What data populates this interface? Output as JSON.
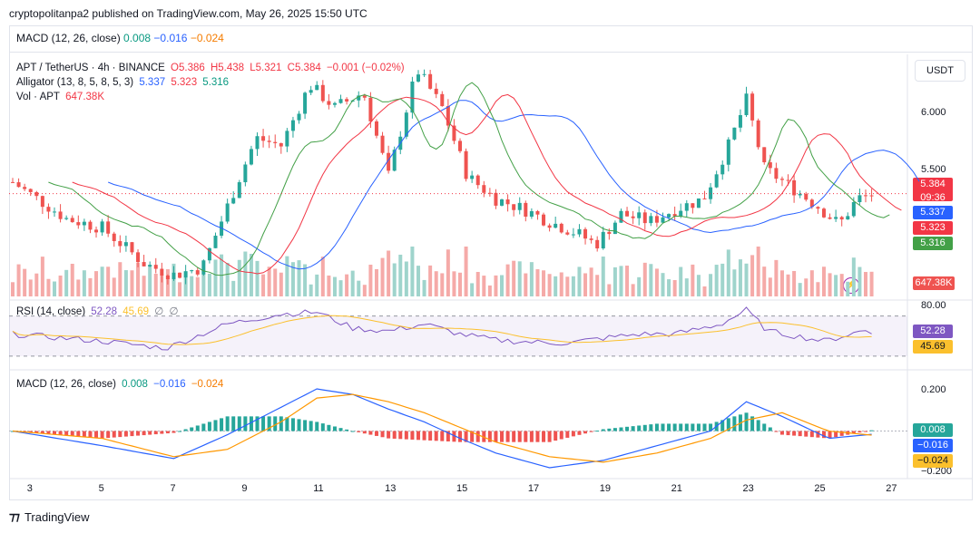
{
  "header": {
    "publisher": "cryptopolitanpa2 published on TradingView.com, May 26, 2025 15:50 UTC"
  },
  "top_macd": {
    "label": "MACD (12, 26, close)",
    "v1": "0.008",
    "v2": "−0.016",
    "v3": "−0.024"
  },
  "price_legend": {
    "symbol": "APT / TetherUS · 4h · BINANCE",
    "o": "O5.386",
    "h": "H5.438",
    "l": "L5.321",
    "c": "C5.384",
    "chg": "−0.001 (−0.02%)",
    "alligator_label": "Alligator (13, 8, 5, 8, 5, 3)",
    "alligator_v1": "5.337",
    "alligator_v2": "5.323",
    "alligator_v3": "5.316",
    "vol_label": "Vol · APT",
    "vol_value": "647.38K"
  },
  "currency_button": "USDT",
  "price_axis": {
    "ticks": [
      "6.000",
      "5.500"
    ],
    "tags": {
      "price": "5.384",
      "countdown": "09:36",
      "jaw": "5.337",
      "teeth": "5.323",
      "lips": "5.316",
      "volume": "647.38K"
    }
  },
  "rsi": {
    "label": "RSI (14, close)",
    "v1": "52.28",
    "v2": "45.69",
    "v3": "∅",
    "v4": "∅",
    "ticks": [
      "80.00"
    ],
    "tags": {
      "rsi": "52.28",
      "ma": "45.69"
    }
  },
  "macd": {
    "label": "MACD (12, 26, close)",
    "v1": "0.008",
    "v2": "−0.016",
    "v3": "−0.024",
    "ticks": [
      "0.200",
      "−0.200"
    ],
    "tags": {
      "hist": "0.008",
      "macd": "−0.016",
      "signal": "−0.024"
    }
  },
  "time_axis": [
    "3",
    "5",
    "7",
    "9",
    "11",
    "13",
    "15",
    "17",
    "19",
    "21",
    "23",
    "25",
    "27"
  ],
  "footer": {
    "brand": "TradingView"
  },
  "colors": {
    "up": "#26a69a",
    "down": "#ef5350",
    "jaw": "#2962ff",
    "teeth": "#f23645",
    "lips": "#43a047",
    "rsi": "#7e57c2",
    "rsi_ma": "#fbc02d",
    "macd": "#2962ff",
    "signal": "#ff9800"
  },
  "chart_data": {
    "type": "candlestick",
    "x_unit": "day of May 2025 (4h candles)",
    "price_ylim": [
      4.75,
      6.3
    ],
    "ohlc_keypoints": [
      {
        "x": 2.5,
        "close": 5.46
      },
      {
        "x": 4,
        "close": 5.22
      },
      {
        "x": 5,
        "close": 5.16
      },
      {
        "x": 6.2,
        "close": 4.92
      },
      {
        "x": 7,
        "close": 4.85
      },
      {
        "x": 7.8,
        "close": 4.9
      },
      {
        "x": 8.5,
        "close": 5.3
      },
      {
        "x": 9.3,
        "close": 5.75
      },
      {
        "x": 10,
        "close": 5.7
      },
      {
        "x": 10.8,
        "close": 6.1
      },
      {
        "x": 11.5,
        "close": 5.95
      },
      {
        "x": 12.3,
        "close": 6.05
      },
      {
        "x": 13,
        "close": 5.5
      },
      {
        "x": 13.8,
        "close": 6.2
      },
      {
        "x": 14.5,
        "close": 5.95
      },
      {
        "x": 15.2,
        "close": 5.5
      },
      {
        "x": 16,
        "close": 5.35
      },
      {
        "x": 16.8,
        "close": 5.28
      },
      {
        "x": 17.5,
        "close": 5.2
      },
      {
        "x": 18.3,
        "close": 5.12
      },
      {
        "x": 18.8,
        "close": 5.05
      },
      {
        "x": 19.5,
        "close": 5.25
      },
      {
        "x": 20.3,
        "close": 5.2
      },
      {
        "x": 21,
        "close": 5.28
      },
      {
        "x": 21.8,
        "close": 5.35
      },
      {
        "x": 22.5,
        "close": 5.7
      },
      {
        "x": 23,
        "close": 6.0
      },
      {
        "x": 23.5,
        "close": 5.55
      },
      {
        "x": 24.3,
        "close": 5.42
      },
      {
        "x": 25,
        "close": 5.3
      },
      {
        "x": 25.6,
        "close": 5.18
      },
      {
        "x": 26.1,
        "close": 5.35
      },
      {
        "x": 26.6,
        "close": 5.384
      }
    ],
    "rsi_ylim": [
      20,
      85
    ],
    "rsi_keypoints": [
      {
        "x": 2.5,
        "rsi": 52
      },
      {
        "x": 5,
        "rsi": 45
      },
      {
        "x": 6.8,
        "rsi": 38
      },
      {
        "x": 8.5,
        "rsi": 62
      },
      {
        "x": 10,
        "rsi": 72
      },
      {
        "x": 11,
        "rsi": 74
      },
      {
        "x": 12,
        "rsi": 58
      },
      {
        "x": 13,
        "rsi": 55
      },
      {
        "x": 14,
        "rsi": 62
      },
      {
        "x": 15,
        "rsi": 52
      },
      {
        "x": 16,
        "rsi": 46
      },
      {
        "x": 17,
        "rsi": 44
      },
      {
        "x": 18,
        "rsi": 43
      },
      {
        "x": 19,
        "rsi": 48
      },
      {
        "x": 20,
        "rsi": 52
      },
      {
        "x": 21,
        "rsi": 52
      },
      {
        "x": 22.3,
        "rsi": 62
      },
      {
        "x": 23,
        "rsi": 76
      },
      {
        "x": 23.6,
        "rsi": 55
      },
      {
        "x": 25.2,
        "rsi": 45
      },
      {
        "x": 26.3,
        "rsi": 56
      },
      {
        "x": 26.6,
        "rsi": 52.28
      }
    ],
    "macd_ylim": [
      -0.22,
      0.25
    ],
    "macd_keypoints": [
      {
        "x": 2.5,
        "macd": 0.0,
        "signal": 0.0
      },
      {
        "x": 5,
        "macd": -0.08,
        "signal": -0.04
      },
      {
        "x": 7,
        "macd": -0.15,
        "signal": -0.14
      },
      {
        "x": 8.5,
        "macd": -0.02,
        "signal": -0.1
      },
      {
        "x": 10,
        "macd": 0.13,
        "signal": 0.05
      },
      {
        "x": 11,
        "macd": 0.23,
        "signal": 0.18
      },
      {
        "x": 12,
        "macd": 0.2,
        "signal": 0.2
      },
      {
        "x": 13,
        "macd": 0.12,
        "signal": 0.16
      },
      {
        "x": 14,
        "macd": 0.05,
        "signal": 0.1
      },
      {
        "x": 15,
        "macd": -0.04,
        "signal": 0.02
      },
      {
        "x": 16,
        "macd": -0.12,
        "signal": -0.06
      },
      {
        "x": 17.5,
        "macd": -0.2,
        "signal": -0.14
      },
      {
        "x": 19,
        "macd": -0.16,
        "signal": -0.17
      },
      {
        "x": 20.5,
        "macd": -0.08,
        "signal": -0.12
      },
      {
        "x": 22,
        "macd": 0.0,
        "signal": -0.04
      },
      {
        "x": 23,
        "macd": 0.16,
        "signal": 0.06
      },
      {
        "x": 24,
        "macd": 0.08,
        "signal": 0.1
      },
      {
        "x": 25.3,
        "macd": -0.04,
        "signal": 0.0
      },
      {
        "x": 26.6,
        "macd": -0.016,
        "signal": -0.024
      }
    ]
  }
}
